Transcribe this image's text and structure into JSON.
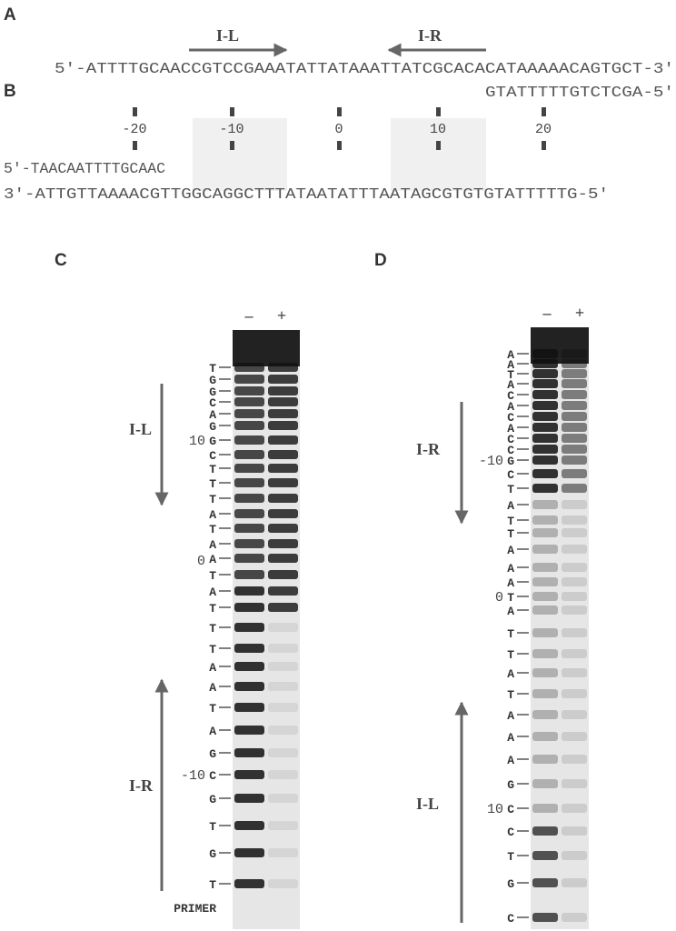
{
  "panel_a": {
    "label": "A",
    "arrow_left": "I-L",
    "arrow_right": "I-R",
    "top_strand": "5'-ATTTTGCAACCGTCCGAAATATTATAAATTATCGCACACATAAAAACAGTGCT-3'",
    "primer": "GTATTTTTGTCTCGA-5'"
  },
  "panel_b": {
    "label": "B",
    "positions": [
      "-20",
      "-10",
      "0",
      "10",
      "20"
    ],
    "primer": "5'-TAACAATTTTGCAAC",
    "bottom_strand": "3'-ATTGTTAAAACGTTGGCAGGCTTTATAATATTTAATAGCGTGTGTATTTTTG-5'"
  },
  "gels": [
    {
      "label": "C",
      "lanes": [
        "–",
        "+"
      ],
      "arrow_top": "I-L",
      "arrow_bottom": "I-R",
      "bases": [
        "T",
        "G",
        "G",
        "C",
        "A",
        "G",
        "G",
        "C",
        "T",
        "T",
        "T",
        "A",
        "T",
        "A",
        "A",
        "T",
        "A",
        "T",
        "T",
        "T",
        "A",
        "A",
        "T",
        "A",
        "G",
        "C",
        "G",
        "T",
        "G",
        "T"
      ],
      "markers": [
        "10",
        "0",
        "-10"
      ],
      "primer_label": "PRIMER"
    },
    {
      "label": "D",
      "lanes": [
        "–",
        "+"
      ],
      "arrow_top": "I-R",
      "arrow_bottom": "I-L",
      "bases": [
        "A",
        "A",
        "T",
        "A",
        "C",
        "A",
        "C",
        "A",
        "C",
        "C",
        "G",
        "C",
        "T",
        "A",
        "T",
        "T",
        "A",
        "A",
        "A",
        "T",
        "A",
        "T",
        "T",
        "A",
        "T",
        "A",
        "A",
        "A",
        "G",
        "C",
        "C",
        "T",
        "G",
        "C"
      ],
      "markers": [
        "-10",
        "0",
        "10"
      ]
    }
  ]
}
